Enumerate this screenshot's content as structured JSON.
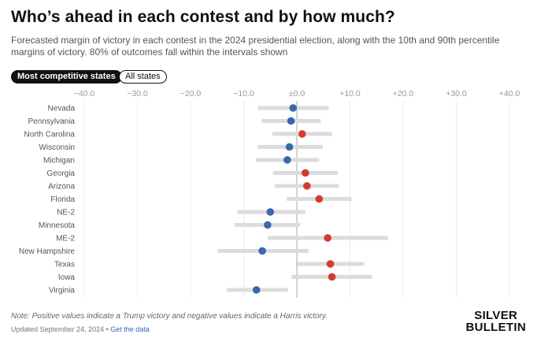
{
  "header": {
    "title": "Who’s ahead in each contest and by how much?",
    "subtitle": "Forecasted margin of victory in each contest in the 2024 presidential election, along with the 10th and 90th percentile margins of victory. 80% of outcomes fall within the intervals shown"
  },
  "toggles": {
    "most_competitive": "Most competitive states",
    "all_states": "All states"
  },
  "footer": {
    "note": "Note: Positive values indicate a Trump victory and negative values indicate a Harris victory.",
    "updated": "Updated September 24, 2024 •",
    "link": "Get the data",
    "logo_line1": "SILVER",
    "logo_line2": "BULLETIN"
  },
  "colors": {
    "harris": "#3b67ad",
    "trump": "#d13c2f",
    "interval": "#dcdcdc",
    "grid": "#ebebeb",
    "zero_line": "#aaaaaa"
  },
  "chart_data": {
    "type": "dot-interval",
    "title": "Who’s ahead in each contest and by how much?",
    "xlim": [
      -40,
      40
    ],
    "ticks": [
      -40,
      -30,
      -20,
      -10,
      0,
      10,
      20,
      30,
      40
    ],
    "tick_labels": [
      "−40.0",
      "−30.0",
      "−20.0",
      "−10.0",
      "±0.0",
      "+10.0",
      "+20.0",
      "+30.0",
      "+40.0"
    ],
    "grid": true,
    "rows": [
      {
        "label": "Nevada",
        "margin": -0.7,
        "low": -7.3,
        "high": 6.0
      },
      {
        "label": "Pennsylvania",
        "margin": -1.1,
        "low": -6.6,
        "high": 4.5
      },
      {
        "label": "North Carolina",
        "margin": 1.0,
        "low": -4.6,
        "high": 6.6
      },
      {
        "label": "Wisconsin",
        "margin": -1.4,
        "low": -7.4,
        "high": 4.9
      },
      {
        "label": "Michigan",
        "margin": -1.8,
        "low": -7.7,
        "high": 4.2
      },
      {
        "label": "Georgia",
        "margin": 1.6,
        "low": -4.5,
        "high": 7.7
      },
      {
        "label": "Arizona",
        "margin": 1.9,
        "low": -4.2,
        "high": 7.9
      },
      {
        "label": "Florida",
        "margin": 4.2,
        "low": -1.9,
        "high": 10.3
      },
      {
        "label": "NE-2",
        "margin": -5.0,
        "low": -11.2,
        "high": 1.6
      },
      {
        "label": "Minnesota",
        "margin": -5.5,
        "low": -11.7,
        "high": 0.6
      },
      {
        "label": "ME-2",
        "margin": 5.8,
        "low": -5.5,
        "high": 17.2
      },
      {
        "label": "New Hampshire",
        "margin": -6.5,
        "low": -14.9,
        "high": 2.2
      },
      {
        "label": "Texas",
        "margin": 6.3,
        "low": 0.1,
        "high": 12.7
      },
      {
        "label": "Iowa",
        "margin": 6.6,
        "low": -1.0,
        "high": 14.1
      },
      {
        "label": "Virginia",
        "margin": -7.6,
        "low": -13.2,
        "high": -1.7
      }
    ]
  }
}
